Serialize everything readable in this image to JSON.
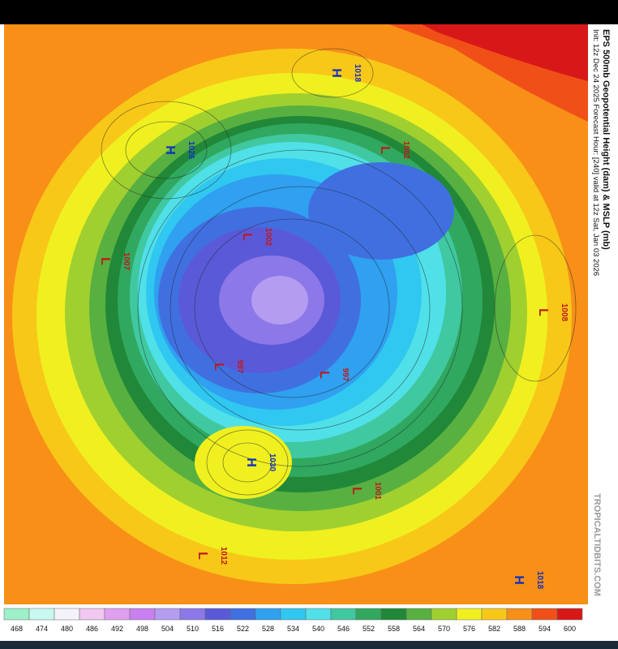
{
  "header": {
    "title": "EPS 500mb Geopotential Height (dam) & MSLP (mb)",
    "subtitle": "Init: 12z Dec 24 2025   Forecast Hour: [240]   valid at 12z Sat, Jan 03 2026"
  },
  "watermark": "TROPICALTIDBITS.COM",
  "colorbar": {
    "labels": [
      468,
      474,
      480,
      486,
      492,
      498,
      504,
      510,
      516,
      522,
      528,
      534,
      540,
      546,
      552,
      558,
      564,
      570,
      576,
      582,
      588,
      594,
      600
    ],
    "colors": [
      "#9ef0c8",
      "#c8f8f0",
      "#f4f4f8",
      "#f0c8f0",
      "#e0a0f0",
      "#c880f0",
      "#b49cf0",
      "#8c78e8",
      "#5a5ad8",
      "#4070e0",
      "#30a0f0",
      "#30c8f0",
      "#50e0e8",
      "#40c8a0",
      "#30a860",
      "#208838",
      "#58b040",
      "#a0d030",
      "#f0f020",
      "#f8c818",
      "#f89018",
      "#f05018",
      "#d81818"
    ]
  },
  "centers": [
    {
      "type": "H",
      "value": 1026
    },
    {
      "type": "H",
      "value": 1018
    },
    {
      "type": "L",
      "value": 1002
    },
    {
      "type": "L",
      "value": 1007
    },
    {
      "type": "L",
      "value": 997
    },
    {
      "type": "L",
      "value": 1002
    },
    {
      "type": "L",
      "value": 997
    },
    {
      "type": "H",
      "value": 1030
    },
    {
      "type": "L",
      "value": 1012
    },
    {
      "type": "L",
      "value": 1008
    },
    {
      "type": "L",
      "value": 1001
    },
    {
      "type": "H",
      "value": 1018
    }
  ]
}
